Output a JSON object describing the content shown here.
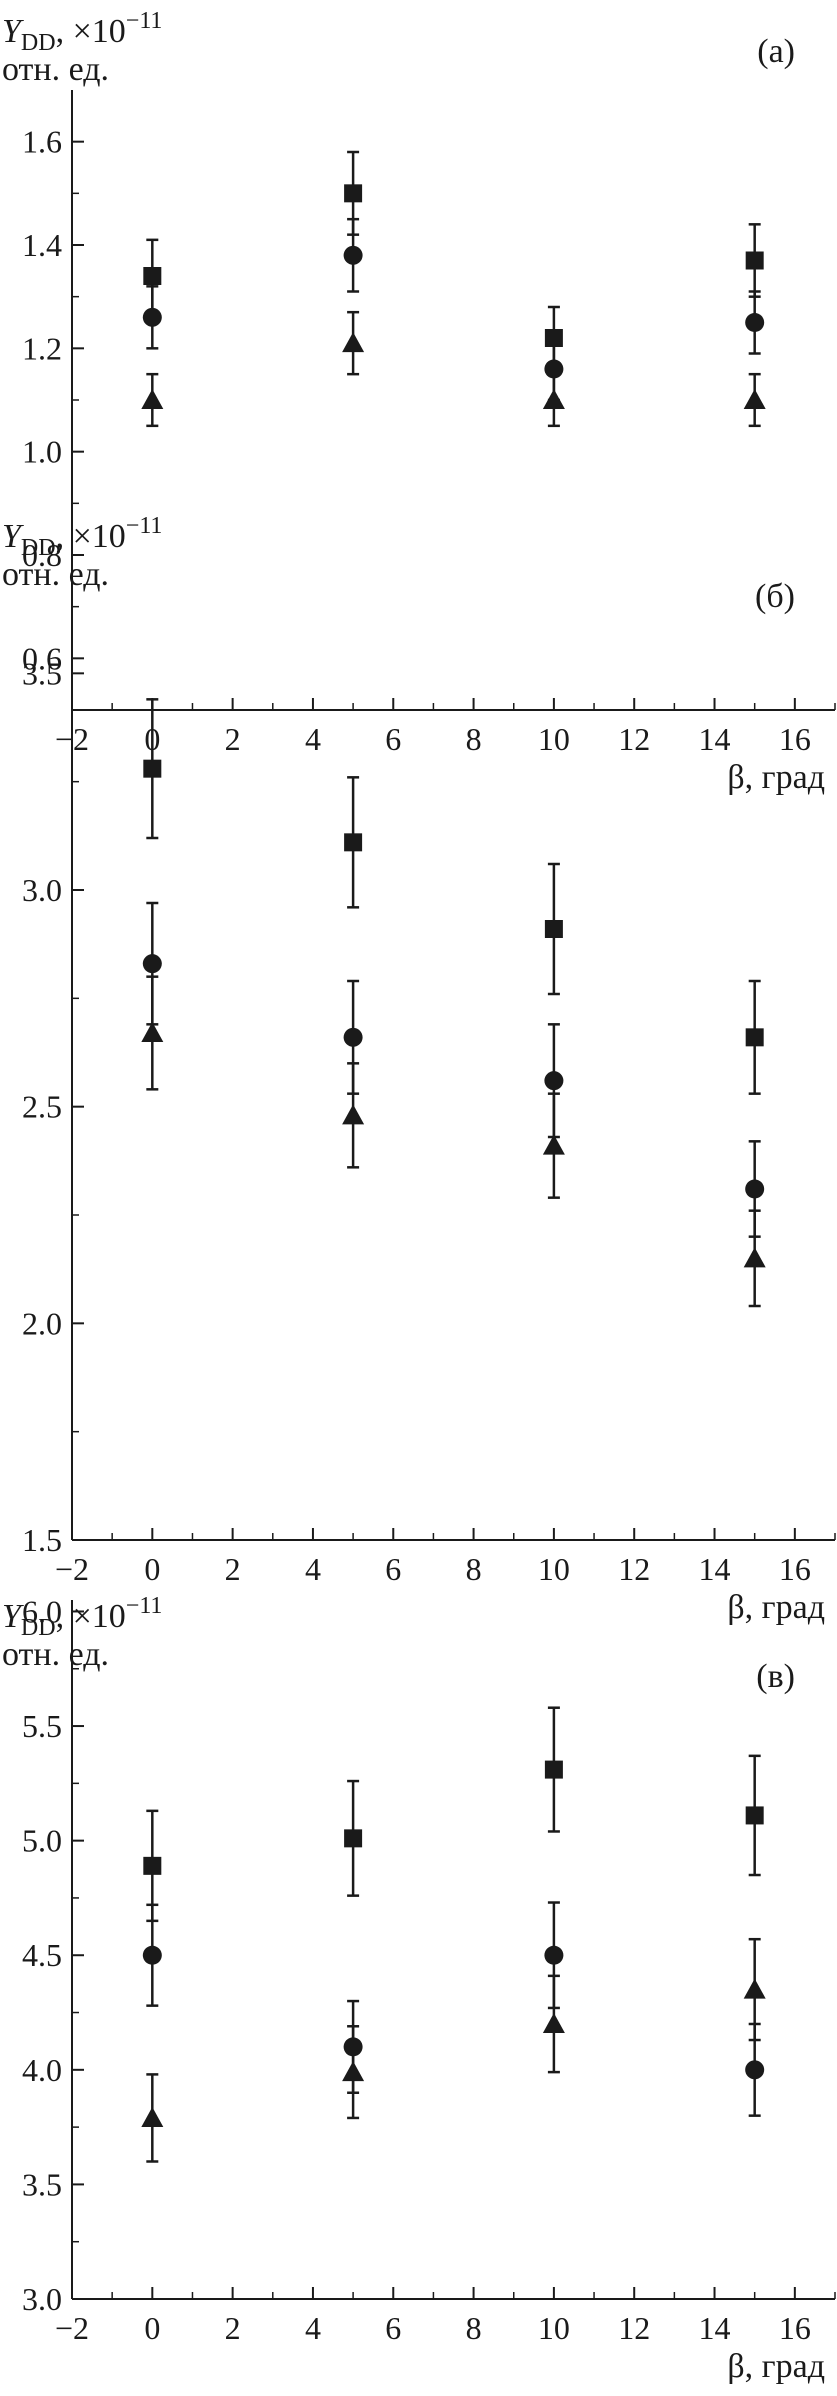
{
  "chart_data": [
    {
      "type": "scatter",
      "panel_label": "(а)",
      "ylabel_main": "Y",
      "ylabel_sub": "DD",
      "ylabel_mult": ", ×10",
      "ylabel_exp": "−11",
      "ylabel_unit": "отн. ед.",
      "xlabel": "β, град",
      "xlim": [
        -2,
        17
      ],
      "ylim": [
        0.5,
        1.7
      ],
      "xticks": [
        -2,
        0,
        2,
        4,
        6,
        8,
        10,
        12,
        14,
        16
      ],
      "xtick_labels": [
        "−2",
        "0",
        "2",
        "4",
        "6",
        "8",
        "10",
        "12",
        "14",
        "16"
      ],
      "yticks": [
        0.6,
        0.8,
        1.0,
        1.2,
        1.4,
        1.6
      ],
      "ytick_labels": [
        "0.6",
        "0.8",
        "1.0",
        "1.2",
        "1.4",
        "1.6"
      ],
      "series": [
        {
          "marker": "square",
          "x": [
            0,
            5,
            10,
            15
          ],
          "y": [
            1.34,
            1.5,
            1.22,
            1.37
          ],
          "err": [
            0.07,
            0.08,
            0.06,
            0.07
          ]
        },
        {
          "marker": "circle",
          "x": [
            0,
            5,
            10,
            15
          ],
          "y": [
            1.26,
            1.38,
            1.16,
            1.25
          ],
          "err": [
            0.06,
            0.07,
            0.06,
            0.06
          ]
        },
        {
          "marker": "triangle",
          "x": [
            0,
            5,
            10,
            15
          ],
          "y": [
            1.1,
            1.21,
            1.1,
            1.1
          ],
          "err": [
            0.05,
            0.06,
            0.05,
            0.05
          ]
        }
      ]
    },
    {
      "type": "scatter",
      "panel_label": "(б)",
      "ylabel_main": "Y",
      "ylabel_sub": "DD",
      "ylabel_mult": ", ×10",
      "ylabel_exp": "−11",
      "ylabel_unit": "отн. ед.",
      "xlabel": "β, град",
      "xlim": [
        -2,
        17
      ],
      "ylim": [
        1.5,
        3.6
      ],
      "xticks": [
        -2,
        0,
        2,
        4,
        6,
        8,
        10,
        12,
        14,
        16
      ],
      "xtick_labels": [
        "−2",
        "0",
        "2",
        "4",
        "6",
        "8",
        "10",
        "12",
        "14",
        "16"
      ],
      "yticks": [
        1.5,
        2.0,
        2.5,
        3.0,
        3.5
      ],
      "ytick_labels": [
        "1.5",
        "2.0",
        "2.5",
        "3.0",
        "3.5"
      ],
      "series": [
        {
          "marker": "square",
          "x": [
            0,
            5,
            10,
            15
          ],
          "y": [
            3.28,
            3.11,
            2.91,
            2.66
          ],
          "err": [
            0.16,
            0.15,
            0.15,
            0.13
          ]
        },
        {
          "marker": "circle",
          "x": [
            0,
            5,
            10,
            15
          ],
          "y": [
            2.83,
            2.66,
            2.56,
            2.31
          ],
          "err": [
            0.14,
            0.13,
            0.13,
            0.11
          ]
        },
        {
          "marker": "triangle",
          "x": [
            0,
            5,
            10,
            15
          ],
          "y": [
            2.67,
            2.48,
            2.41,
            2.15
          ],
          "err": [
            0.13,
            0.12,
            0.12,
            0.11
          ]
        }
      ]
    },
    {
      "type": "scatter",
      "panel_label": "(в)",
      "ylabel_main": "Y",
      "ylabel_sub": "DD",
      "ylabel_mult": ", ×10",
      "ylabel_exp": "−11",
      "ylabel_unit": "отн. ед.",
      "xlabel": "β, град",
      "xlim": [
        -2,
        17
      ],
      "ylim": [
        3.0,
        6.05
      ],
      "xticks": [
        -2,
        0,
        2,
        4,
        6,
        8,
        10,
        12,
        14,
        16
      ],
      "xtick_labels": [
        "−2",
        "0",
        "2",
        "4",
        "6",
        "8",
        "10",
        "12",
        "14",
        "16"
      ],
      "yticks": [
        3.0,
        3.5,
        4.0,
        4.5,
        5.0,
        5.5,
        6.0
      ],
      "ytick_labels": [
        "3.0",
        "3.5",
        "4.0",
        "4.5",
        "5.0",
        "5.5",
        "6.0"
      ],
      "series": [
        {
          "marker": "square",
          "x": [
            0,
            5,
            10,
            15
          ],
          "y": [
            4.89,
            5.01,
            5.31,
            5.11
          ],
          "err": [
            0.24,
            0.25,
            0.27,
            0.26
          ]
        },
        {
          "marker": "circle",
          "x": [
            0,
            5,
            10,
            15
          ],
          "y": [
            4.5,
            4.1,
            4.5,
            4.0
          ],
          "err": [
            0.22,
            0.2,
            0.23,
            0.2
          ]
        },
        {
          "marker": "triangle",
          "x": [
            0,
            5,
            10,
            15
          ],
          "y": [
            3.79,
            3.99,
            4.2,
            4.35
          ],
          "err": [
            0.19,
            0.2,
            0.21,
            0.22
          ]
        }
      ]
    }
  ]
}
